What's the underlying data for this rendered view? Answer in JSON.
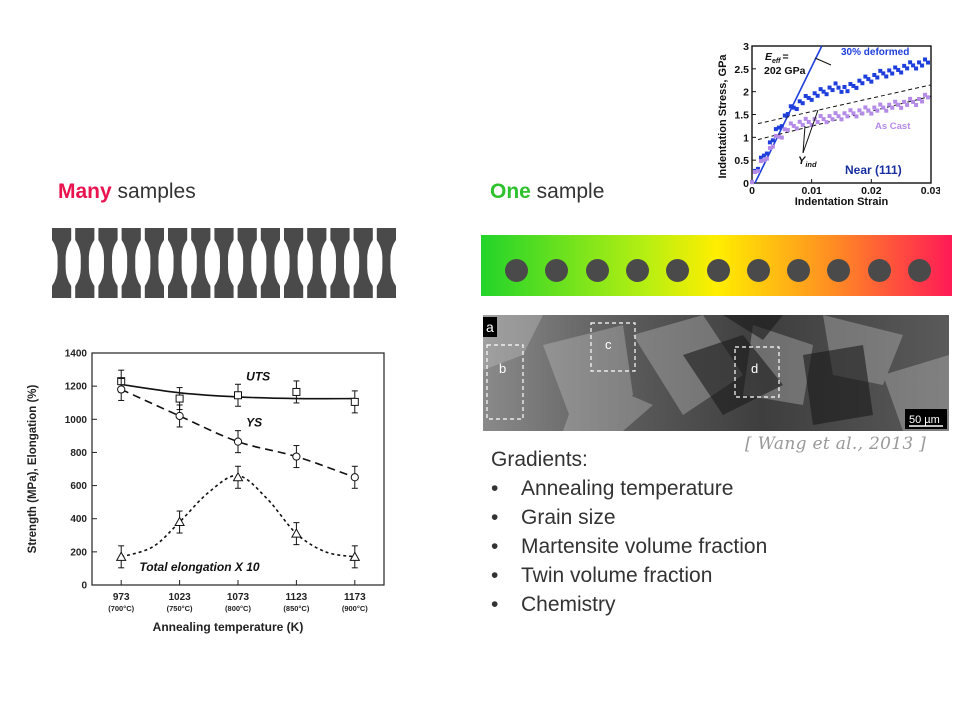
{
  "left": {
    "heading_emphasis": "Many",
    "heading_rest": " samples",
    "sample_count": 15
  },
  "right": {
    "heading_emphasis": "One",
    "heading_rest": " sample",
    "dot_count": 11
  },
  "micrograph": {
    "labels": [
      "a",
      "b",
      "c",
      "d"
    ],
    "scale_bar": "50 µm"
  },
  "citation": "[ Wang et al., 2013 ]",
  "gradients": {
    "title": "Gradients:",
    "bullet": "•",
    "items": [
      "Annealing temperature",
      "Grain size",
      "Martensite volume fraction",
      "Twin volume fraction",
      "Chemistry"
    ]
  },
  "colors": {
    "emphasis_red": "#e8134f",
    "emphasis_green": "#2ec22e",
    "gradient_start": "#22d42a",
    "gradient_mid": "#ffee00",
    "gradient_end": "#ff1a56",
    "series_blue": "#1f3fdc",
    "series_lilac": "#b58be8"
  },
  "chart_data": [
    {
      "type": "line",
      "xlabel": "Annealing temperature (K)",
      "ylabel": "Strength (MPa), Elongation (%)",
      "x": [
        973,
        1023,
        1073,
        1123,
        1173
      ],
      "x_tick_labels": [
        "973",
        "1023",
        "1073",
        "1123",
        "1173"
      ],
      "x_tick_sublabels": [
        "(700°C)",
        "(750°C)",
        "(800°C)",
        "(850°C)",
        "(900°C)"
      ],
      "y_ticks": [
        0,
        200,
        400,
        600,
        800,
        1000,
        1200,
        1400
      ],
      "ylim": [
        0,
        1400
      ],
      "series": [
        {
          "name": "UTS",
          "marker": "square",
          "style": "solid",
          "values": [
            1230,
            1125,
            1145,
            1165,
            1105
          ]
        },
        {
          "name": "YS",
          "marker": "circle",
          "style": "dashed",
          "values": [
            1180,
            1020,
            865,
            775,
            650
          ]
        },
        {
          "name": "Total elongation X 10",
          "marker": "triangle",
          "style": "dotted",
          "values": [
            170,
            380,
            650,
            310,
            170
          ]
        }
      ]
    },
    {
      "type": "scatter",
      "xlabel": "Indentation Strain",
      "ylabel": "Indentation Stress, GPa",
      "x_ticks": [
        0,
        0.01,
        0.02,
        0.03
      ],
      "x_tick_labels": [
        "0",
        "0.01",
        "0.02",
        "0.03"
      ],
      "y_ticks": [
        0,
        0.5,
        1,
        1.5,
        2,
        2.5,
        3
      ],
      "y_tick_labels": [
        "0",
        "0.5",
        "1",
        "1.5",
        "2",
        "2.5",
        "3"
      ],
      "xlim": [
        0,
        0.03
      ],
      "ylim": [
        0,
        3
      ],
      "series": [
        {
          "name": "30% deformed",
          "x": [
            0,
            0.002,
            0.004,
            0.006,
            0.008,
            0.01,
            0.012,
            0.014,
            0.016,
            0.018,
            0.02,
            0.022,
            0.024,
            0.026,
            0.028,
            0.03
          ],
          "y": [
            0.1,
            0.6,
            1.1,
            1.55,
            1.75,
            1.9,
            2.0,
            2.1,
            2.05,
            2.2,
            2.3,
            2.4,
            2.45,
            2.55,
            2.6,
            2.65
          ]
        },
        {
          "name": "As Cast",
          "x": [
            0,
            0.002,
            0.004,
            0.006,
            0.008,
            0.01,
            0.012,
            0.014,
            0.016,
            0.018,
            0.02,
            0.022,
            0.024,
            0.026,
            0.028,
            0.03
          ],
          "y": [
            0.1,
            0.5,
            0.95,
            1.2,
            1.3,
            1.35,
            1.4,
            1.45,
            1.5,
            1.55,
            1.6,
            1.65,
            1.7,
            1.75,
            1.8,
            1.9
          ]
        }
      ],
      "annotations": {
        "modulus_label": "E",
        "modulus_subscript": "eff",
        "modulus_sign": "=",
        "modulus_value": "202 GPa",
        "yield_label": "Y",
        "yield_subscript": "ind",
        "orientation": "Near (111)"
      }
    }
  ]
}
